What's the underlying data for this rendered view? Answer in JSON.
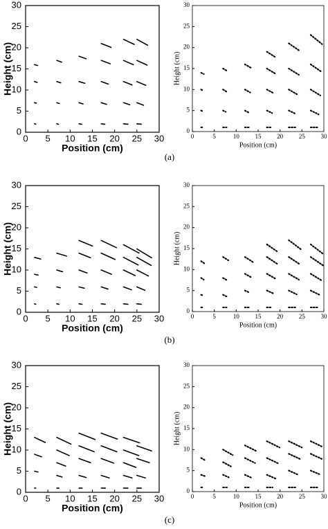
{
  "captions": [
    "(a)",
    "(b)",
    "(c)"
  ],
  "chart_data": [
    {
      "type": "quiver",
      "xlabel": "Position (cm)",
      "ylabel": "Height (cm)",
      "xlim": [
        0,
        30
      ],
      "ylim": [
        0,
        30
      ],
      "xticks": [
        0,
        5,
        10,
        15,
        20,
        25,
        30
      ],
      "yticks": [
        0,
        5,
        10,
        15,
        20,
        25,
        30
      ],
      "line_style": "solid",
      "color": "#000000",
      "x": [
        2,
        2,
        2,
        2,
        7,
        7,
        7,
        7,
        12,
        12,
        12,
        12,
        17,
        17,
        17,
        17,
        17,
        22,
        22,
        22,
        22,
        22,
        25,
        25,
        25,
        25,
        25
      ],
      "y": [
        2,
        7,
        12,
        16,
        2,
        7,
        12,
        17,
        2,
        7,
        12,
        18,
        2,
        7,
        12,
        17,
        21,
        2,
        7,
        12,
        17,
        22,
        2,
        7,
        12,
        17,
        22
      ],
      "dx": [
        0.3,
        0.4,
        0.6,
        0.7,
        0.4,
        0.6,
        0.9,
        1.1,
        0.6,
        0.9,
        1.3,
        1.6,
        0.8,
        1.2,
        1.6,
        2,
        2.2,
        1,
        1.4,
        1.9,
        2.2,
        2.4,
        1,
        1.5,
        2,
        2.3,
        2.4
      ],
      "dy": [
        -0.1,
        -0.1,
        -0.2,
        -0.2,
        -0.1,
        -0.2,
        -0.3,
        -0.4,
        -0.1,
        -0.3,
        -0.4,
        -0.6,
        -0.1,
        -0.4,
        -0.6,
        -0.8,
        -0.9,
        -0.1,
        -0.5,
        -0.8,
        -1,
        -1.2,
        -0.1,
        -0.6,
        -0.9,
        -1.1,
        -1.4
      ]
    },
    {
      "type": "quiver",
      "xlabel": "Position (cm)",
      "ylabel": "Height (cm)",
      "xlim": [
        0,
        30
      ],
      "ylim": [
        0,
        30
      ],
      "xticks": [
        0,
        5,
        10,
        15,
        20,
        25,
        30
      ],
      "yticks": [
        0,
        5,
        10,
        15,
        20,
        25,
        30
      ],
      "line_style": "dotted",
      "color": "#000000",
      "x": [
        2,
        2,
        2,
        2,
        7,
        7,
        7,
        7,
        12,
        12,
        12,
        12,
        17,
        17,
        17,
        17,
        17,
        22,
        22,
        22,
        22,
        22,
        27,
        27,
        27,
        27,
        27
      ],
      "y": [
        1,
        5,
        10,
        14,
        1,
        5,
        10,
        15,
        1,
        5,
        10,
        16,
        1,
        5,
        10,
        15,
        19,
        1,
        5,
        10,
        15,
        21,
        1,
        5,
        10,
        16,
        23
      ],
      "dx": [
        0.5,
        0.4,
        0.5,
        0.6,
        0.8,
        0.6,
        0.8,
        1,
        1,
        0.9,
        1.2,
        1.5,
        1.2,
        1.2,
        1.6,
        1.9,
        2.1,
        1.5,
        1.6,
        2,
        2.3,
        2.5,
        1.6,
        1.8,
        2.2,
        2.5,
        2.6
      ],
      "dy": [
        0,
        -0.2,
        -0.3,
        -0.3,
        0,
        -0.3,
        -0.5,
        -0.6,
        0,
        -0.5,
        -0.7,
        -0.9,
        0,
        -0.6,
        -0.9,
        -1.2,
        -1.4,
        0,
        -0.8,
        -1.2,
        -1.5,
        -1.8,
        0,
        -0.9,
        -1.4,
        -1.8,
        -2.2
      ]
    },
    {
      "type": "quiver",
      "xlabel": "Position (cm)",
      "ylabel": "Height (cm)",
      "xlim": [
        0,
        30
      ],
      "ylim": [
        0,
        30
      ],
      "xticks": [
        0,
        5,
        10,
        15,
        20,
        25,
        30
      ],
      "yticks": [
        0,
        5,
        10,
        15,
        20,
        25,
        30
      ],
      "line_style": "solid",
      "color": "#000000",
      "x": [
        2,
        2,
        2,
        2,
        7,
        7,
        7,
        7,
        12,
        12,
        12,
        12,
        12,
        17,
        17,
        17,
        17,
        17,
        22,
        22,
        22,
        22,
        22,
        25,
        25,
        25,
        25,
        25
      ],
      "y": [
        2,
        6,
        9,
        13,
        2,
        6,
        10,
        14,
        2,
        6,
        10,
        14,
        17,
        2,
        6,
        10,
        14,
        17,
        2,
        6,
        10,
        13,
        16,
        2,
        6,
        10,
        13,
        15
      ],
      "dx": [
        0.3,
        0.5,
        0.8,
        1.4,
        0.5,
        0.8,
        1.3,
        2.2,
        0.7,
        1.2,
        1.8,
        2.6,
        3,
        0.9,
        1.5,
        2.3,
        3.1,
        3.4,
        1,
        1.8,
        2.6,
        3.3,
        3.5,
        1,
        1.8,
        2.6,
        3.2,
        3.3
      ],
      "dy": [
        -0.1,
        -0.1,
        -0.2,
        -0.4,
        -0.1,
        -0.2,
        -0.4,
        -0.7,
        -0.1,
        -0.3,
        -0.7,
        -1.1,
        -1.3,
        -0.1,
        -0.5,
        -1,
        -1.5,
        -1.7,
        -0.1,
        -0.7,
        -1.3,
        -1.8,
        -2,
        -0.1,
        -0.8,
        -1.4,
        -1.9,
        -2.1
      ]
    },
    {
      "type": "quiver",
      "xlabel": "Position (cm)",
      "ylabel": "Height (cm)",
      "xlim": [
        0,
        30
      ],
      "ylim": [
        0,
        30
      ],
      "xticks": [
        0,
        5,
        10,
        15,
        20,
        25,
        30
      ],
      "yticks": [
        0,
        5,
        10,
        15,
        20,
        25,
        30
      ],
      "line_style": "dotted",
      "color": "#000000",
      "x": [
        2,
        2,
        2,
        2,
        7,
        7,
        7,
        7,
        12,
        12,
        12,
        12,
        17,
        17,
        17,
        17,
        17,
        22,
        22,
        22,
        22,
        22,
        27,
        27,
        27,
        27,
        27
      ],
      "y": [
        1,
        4,
        8,
        12,
        1,
        4,
        8,
        13,
        1,
        5,
        9,
        13,
        1,
        5,
        9,
        13,
        16,
        1,
        5,
        9,
        13,
        17,
        1,
        5,
        9,
        13,
        16
      ],
      "dx": [
        0.5,
        0.5,
        0.6,
        0.7,
        0.8,
        0.8,
        1,
        1.2,
        1,
        1.1,
        1.5,
        1.8,
        1.2,
        1.5,
        2,
        2.3,
        2.5,
        1.5,
        1.8,
        2.3,
        2.6,
        2.8,
        1.6,
        2,
        2.5,
        2.8,
        3
      ],
      "dy": [
        0,
        -0.2,
        -0.4,
        -0.5,
        0,
        -0.4,
        -0.6,
        -0.8,
        0,
        -0.5,
        -0.9,
        -1.2,
        0,
        -0.7,
        -1.2,
        -1.6,
        -1.8,
        0,
        -0.9,
        -1.4,
        -1.8,
        -2.2,
        0,
        -1,
        -1.6,
        -2,
        -2.4
      ]
    },
    {
      "type": "quiver",
      "xlabel": "Position (cm)",
      "ylabel": "Height (cm)",
      "xlim": [
        0,
        30
      ],
      "ylim": [
        0,
        30
      ],
      "xticks": [
        0,
        5,
        10,
        15,
        20,
        25,
        30
      ],
      "yticks": [
        0,
        5,
        10,
        15,
        20,
        25,
        30
      ],
      "line_style": "solid",
      "color": "#000000",
      "x": [
        2,
        2,
        2,
        2,
        7,
        7,
        7,
        7,
        7,
        12,
        12,
        12,
        12,
        12,
        17,
        17,
        17,
        17,
        17,
        22,
        22,
        22,
        22,
        22,
        25,
        25,
        25,
        25
      ],
      "y": [
        1,
        5,
        9,
        13,
        1,
        4,
        7,
        10,
        13,
        1,
        4,
        8,
        11,
        14,
        1,
        4,
        8,
        11,
        14,
        1,
        4,
        7,
        10,
        13,
        1,
        4,
        8,
        11
      ],
      "dx": [
        0.3,
        0.8,
        1.6,
        2.4,
        0.5,
        1.2,
        2,
        2.8,
        3.2,
        0.7,
        1.6,
        2.6,
        3.4,
        3.6,
        0.9,
        1.8,
        2.8,
        3.5,
        3.6,
        1,
        1.9,
        2.8,
        3.4,
        3.6,
        1,
        1.9,
        2.8,
        3.3
      ],
      "dy": [
        0,
        -0.2,
        -0.6,
        -1.2,
        0,
        -0.4,
        -0.8,
        -1.3,
        -1.6,
        0,
        -0.5,
        -1,
        -1.4,
        -1.5,
        0,
        -0.6,
        -1.1,
        -1.4,
        -1.4,
        0,
        -0.6,
        -1.1,
        -1.3,
        -1.3,
        0,
        -0.6,
        -1,
        -1.2
      ]
    },
    {
      "type": "quiver",
      "xlabel": "Position (cm)",
      "ylabel": "Height (cm)",
      "xlim": [
        0,
        30
      ],
      "ylim": [
        0,
        30
      ],
      "xticks": [
        0,
        5,
        10,
        15,
        20,
        25,
        30
      ],
      "yticks": [
        0,
        5,
        10,
        15,
        20,
        25,
        30
      ],
      "line_style": "dotted",
      "color": "#000000",
      "x": [
        2,
        2,
        2,
        7,
        7,
        7,
        7,
        12,
        12,
        12,
        12,
        17,
        17,
        17,
        17,
        22,
        22,
        22,
        22,
        27,
        27,
        27,
        27
      ],
      "y": [
        1,
        4,
        8,
        1,
        4,
        7,
        10,
        1,
        4,
        8,
        11,
        1,
        4,
        8,
        12,
        1,
        5,
        9,
        12,
        1,
        5,
        9,
        12
      ],
      "dx": [
        0.6,
        0.8,
        1,
        0.9,
        1.3,
        1.8,
        2.2,
        1.1,
        1.7,
        2.3,
        2.7,
        1.3,
        2,
        2.6,
        2.9,
        1.5,
        2.2,
        2.7,
        3,
        1.6,
        2.3,
        2.7,
        2.8
      ],
      "dy": [
        0,
        -0.3,
        -0.6,
        0,
        -0.6,
        -1,
        -1.3,
        0,
        -0.8,
        -1.2,
        -1.4,
        0,
        -0.9,
        -1.3,
        -1.5,
        0,
        -1,
        -1.3,
        -1.5,
        0,
        -1,
        -1.3,
        -1.4
      ]
    }
  ]
}
